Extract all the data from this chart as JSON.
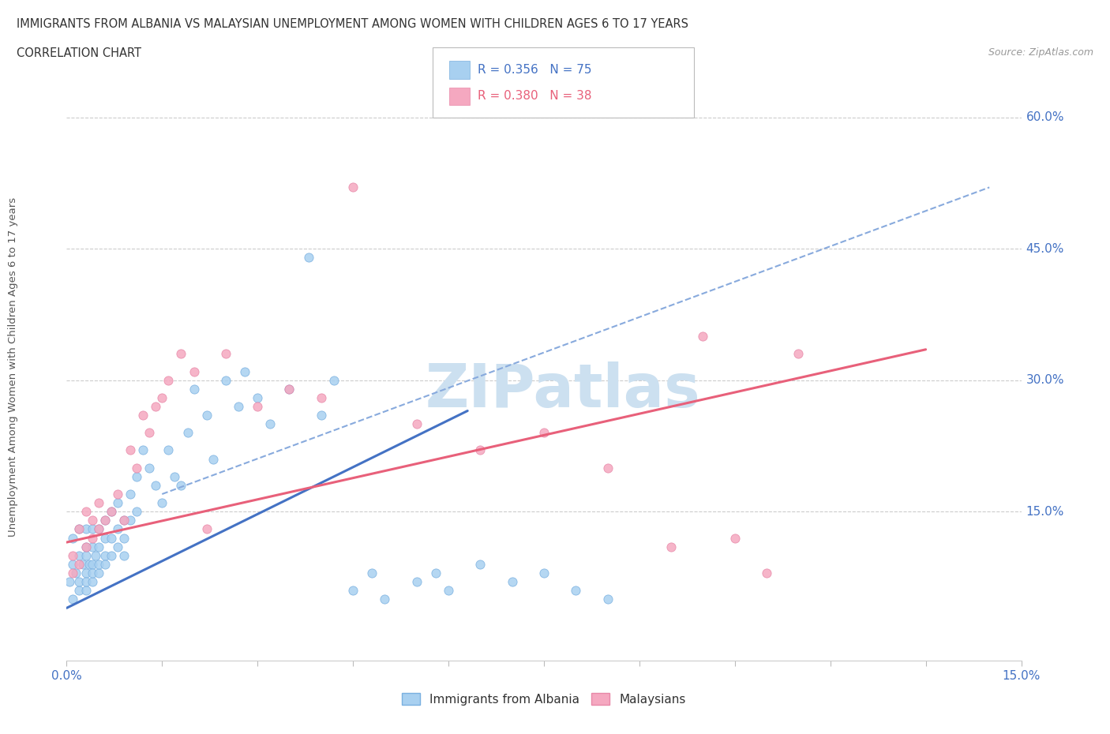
{
  "title": "IMMIGRANTS FROM ALBANIA VS MALAYSIAN UNEMPLOYMENT AMONG WOMEN WITH CHILDREN AGES 6 TO 17 YEARS",
  "subtitle": "CORRELATION CHART",
  "source": "Source: ZipAtlas.com",
  "ylabel_label": "Unemployment Among Women with Children Ages 6 to 17 years",
  "legend_label_blue": "Immigrants from Albania",
  "legend_label_pink": "Malaysians",
  "blue_color": "#a8d0f0",
  "pink_color": "#f5a8c0",
  "blue_edge_color": "#7ab0e0",
  "pink_edge_color": "#e888a8",
  "blue_line_color": "#4472c4",
  "pink_line_color": "#e8607a",
  "dashed_line_color": "#88aadd",
  "watermark_color": "#cce0f0",
  "xlim": [
    0.0,
    0.15
  ],
  "ylim": [
    -0.02,
    0.65
  ],
  "yticks": [
    0.15,
    0.3,
    0.45,
    0.6
  ],
  "ytick_labels": [
    "15.0%",
    "30.0%",
    "45.0%",
    "60.0%"
  ],
  "blue_scatter_x": [
    0.0005,
    0.001,
    0.001,
    0.001,
    0.0015,
    0.002,
    0.002,
    0.002,
    0.002,
    0.0025,
    0.003,
    0.003,
    0.003,
    0.003,
    0.003,
    0.003,
    0.0035,
    0.004,
    0.004,
    0.004,
    0.004,
    0.004,
    0.0045,
    0.005,
    0.005,
    0.005,
    0.005,
    0.006,
    0.006,
    0.006,
    0.006,
    0.007,
    0.007,
    0.007,
    0.008,
    0.008,
    0.008,
    0.009,
    0.009,
    0.009,
    0.01,
    0.01,
    0.011,
    0.011,
    0.012,
    0.013,
    0.014,
    0.015,
    0.016,
    0.017,
    0.018,
    0.019,
    0.02,
    0.022,
    0.023,
    0.025,
    0.027,
    0.028,
    0.03,
    0.032,
    0.035,
    0.038,
    0.04,
    0.042,
    0.045,
    0.048,
    0.05,
    0.055,
    0.058,
    0.06,
    0.065,
    0.07,
    0.075,
    0.08,
    0.085
  ],
  "blue_scatter_y": [
    0.07,
    0.05,
    0.09,
    0.12,
    0.08,
    0.06,
    0.1,
    0.13,
    0.07,
    0.09,
    0.06,
    0.08,
    0.11,
    0.13,
    0.07,
    0.1,
    0.09,
    0.07,
    0.09,
    0.11,
    0.13,
    0.08,
    0.1,
    0.08,
    0.11,
    0.09,
    0.13,
    0.1,
    0.12,
    0.09,
    0.14,
    0.12,
    0.1,
    0.15,
    0.13,
    0.11,
    0.16,
    0.14,
    0.12,
    0.1,
    0.17,
    0.14,
    0.19,
    0.15,
    0.22,
    0.2,
    0.18,
    0.16,
    0.22,
    0.19,
    0.18,
    0.24,
    0.29,
    0.26,
    0.21,
    0.3,
    0.27,
    0.31,
    0.28,
    0.25,
    0.29,
    0.44,
    0.26,
    0.3,
    0.06,
    0.08,
    0.05,
    0.07,
    0.08,
    0.06,
    0.09,
    0.07,
    0.08,
    0.06,
    0.05
  ],
  "pink_scatter_x": [
    0.001,
    0.001,
    0.002,
    0.002,
    0.003,
    0.003,
    0.004,
    0.004,
    0.005,
    0.005,
    0.006,
    0.007,
    0.008,
    0.009,
    0.01,
    0.011,
    0.012,
    0.013,
    0.014,
    0.015,
    0.016,
    0.018,
    0.02,
    0.022,
    0.025,
    0.03,
    0.035,
    0.04,
    0.045,
    0.055,
    0.065,
    0.075,
    0.085,
    0.095,
    0.1,
    0.105,
    0.11,
    0.115
  ],
  "pink_scatter_y": [
    0.08,
    0.1,
    0.09,
    0.13,
    0.11,
    0.15,
    0.12,
    0.14,
    0.13,
    0.16,
    0.14,
    0.15,
    0.17,
    0.14,
    0.22,
    0.2,
    0.26,
    0.24,
    0.27,
    0.28,
    0.3,
    0.33,
    0.31,
    0.13,
    0.33,
    0.27,
    0.29,
    0.28,
    0.52,
    0.25,
    0.22,
    0.24,
    0.2,
    0.11,
    0.35,
    0.12,
    0.08,
    0.33
  ],
  "blue_line_x0": 0.0,
  "blue_line_x1": 0.063,
  "blue_line_y0": 0.04,
  "blue_line_y1": 0.265,
  "pink_line_x0": 0.0,
  "pink_line_x1": 0.135,
  "pink_line_y0": 0.115,
  "pink_line_y1": 0.335,
  "dash_line_x0": 0.015,
  "dash_line_x1": 0.145,
  "dash_line_y0": 0.17,
  "dash_line_y1": 0.52
}
